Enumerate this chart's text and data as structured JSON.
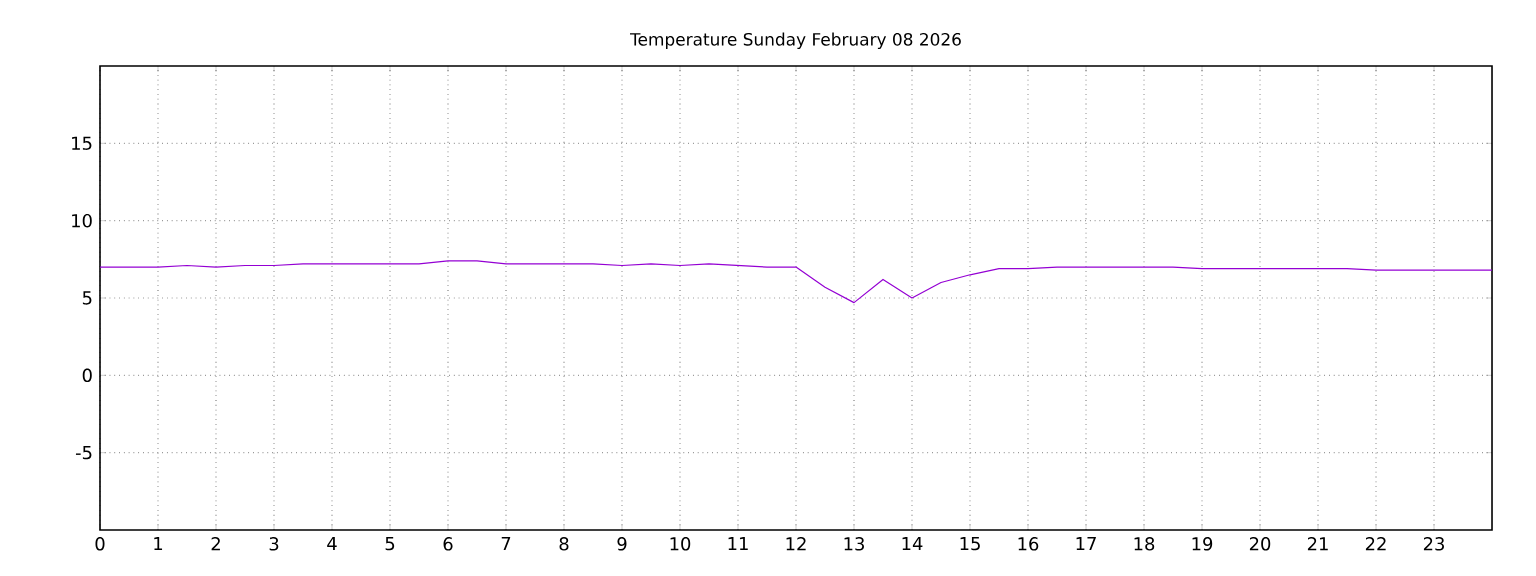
{
  "chart_data": {
    "type": "line",
    "title": "Temperature Sunday February 08 2026",
    "x": [
      0,
      0.5,
      1,
      1.5,
      2,
      2.5,
      3,
      3.5,
      4,
      4.5,
      5,
      5.5,
      6,
      6.5,
      7,
      7.5,
      8,
      8.5,
      9,
      9.5,
      10,
      10.5,
      11,
      11.5,
      12,
      12.5,
      13,
      13.5,
      14,
      14.5,
      15,
      15.5,
      16,
      16.5,
      17,
      17.5,
      18,
      18.5,
      19,
      19.5,
      20,
      20.5,
      21,
      21.5,
      22,
      22.5,
      23,
      23.5,
      24
    ],
    "series": [
      {
        "color": "#9400d3",
        "values": [
          7.0,
          7.0,
          7.0,
          7.1,
          7.0,
          7.1,
          7.1,
          7.2,
          7.2,
          7.2,
          7.2,
          7.2,
          7.4,
          7.4,
          7.2,
          7.2,
          7.2,
          7.2,
          7.1,
          7.2,
          7.1,
          7.2,
          7.1,
          7.0,
          7.0,
          5.7,
          4.7,
          6.2,
          5.0,
          6.0,
          6.5,
          6.9,
          6.9,
          7.0,
          7.0,
          7.0,
          7.0,
          7.0,
          6.9,
          6.9,
          6.9,
          6.9,
          6.9,
          6.9,
          6.8,
          6.8,
          6.8,
          6.8,
          6.8
        ]
      }
    ],
    "xlim": [
      0,
      24
    ],
    "xticks": [
      0,
      1,
      2,
      3,
      4,
      5,
      6,
      7,
      8,
      9,
      10,
      11,
      12,
      13,
      14,
      15,
      16,
      17,
      18,
      19,
      20,
      21,
      22,
      23
    ],
    "ylim": [
      -10,
      20
    ],
    "yticks": [
      -5,
      0,
      5,
      10,
      15
    ],
    "grid": true,
    "line_style": "solid",
    "marker": "none"
  }
}
